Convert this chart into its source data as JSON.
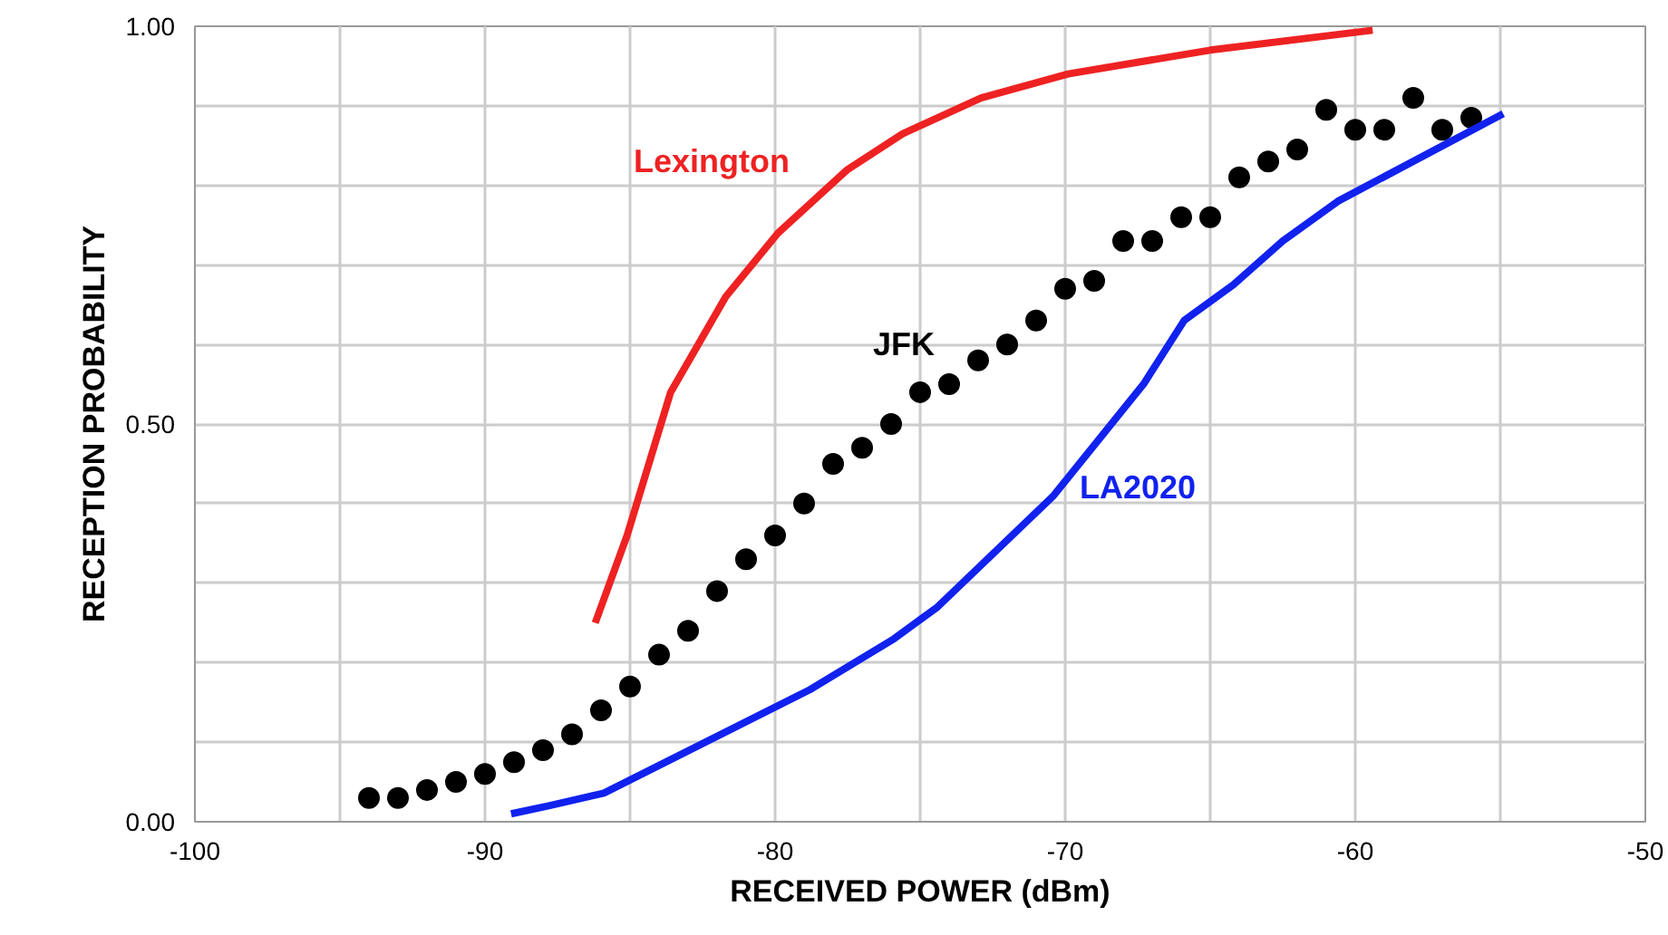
{
  "chart_data": {
    "type": "line",
    "xlabel": "RECEIVED POWER (dBm)",
    "ylabel": "RECEPTION PROBABILITY",
    "xlim": [
      -100,
      -50
    ],
    "ylim": [
      0,
      1
    ],
    "xticks": [
      -100,
      {
        "value": -95,
        "label": null
      },
      -90,
      {
        "value": -85,
        "label": null
      },
      -80,
      {
        "value": -75,
        "label": null
      },
      -70,
      {
        "value": -65,
        "label": null
      },
      -60,
      {
        "value": -55,
        "label": null
      },
      -50
    ],
    "yticks": [
      {
        "value": 0,
        "label": "0.00"
      },
      {
        "value": 0.1,
        "label": null
      },
      {
        "value": 0.2,
        "label": null
      },
      {
        "value": 0.3,
        "label": null
      },
      {
        "value": 0.4,
        "label": null
      },
      {
        "value": 0.5,
        "label": "0.50"
      },
      {
        "value": 0.6,
        "label": null
      },
      {
        "value": 0.7,
        "label": null
      },
      {
        "value": 0.8,
        "label": null
      },
      {
        "value": 0.9,
        "label": null
      },
      {
        "value": 1,
        "label": "1.00"
      }
    ],
    "grid": true,
    "series": [
      {
        "name": "Lexington",
        "color": "#ee2222",
        "x": [
          -86.2,
          -85.1,
          -83.6,
          -81.7,
          -79.9,
          -77.5,
          -75.6,
          -72.9,
          -69.9,
          -65,
          -59.4
        ],
        "values": [
          0.25,
          0.36,
          0.54,
          0.66,
          0.74,
          0.82,
          0.865,
          0.91,
          0.94,
          0.97,
          0.995
        ]
      },
      {
        "name": "JFK",
        "color": "#000000",
        "type": "scatter",
        "marker": "circle",
        "x": [
          -94,
          -93,
          -92,
          -91,
          -90,
          -89,
          -88,
          -87,
          -86,
          -85,
          -84,
          -83,
          -82,
          -81,
          -80,
          -79,
          -78,
          -77,
          -76,
          -75,
          -74,
          -73,
          -72,
          -71,
          -70,
          -69,
          -68,
          -67,
          -66,
          -65,
          -64,
          -63,
          -62,
          -61,
          -60,
          -59,
          -58,
          -57,
          -56
        ],
        "values": [
          0.03,
          0.03,
          0.04,
          0.05,
          0.06,
          0.075,
          0.09,
          0.11,
          0.14,
          0.17,
          0.21,
          0.24,
          0.29,
          0.33,
          0.36,
          0.4,
          0.45,
          0.47,
          0.5,
          0.54,
          0.55,
          0.58,
          0.6,
          0.63,
          0.67,
          0.68,
          0.73,
          0.73,
          0.76,
          0.76,
          0.81,
          0.83,
          0.845,
          0.895,
          0.87,
          0.87,
          0.91,
          0.87,
          0.885
        ]
      },
      {
        "name": "LA2020",
        "color": "#1122ee",
        "x": [
          -89.1,
          -87.8,
          -85.9,
          -78.8,
          -75.9,
          -74.4,
          -70.4,
          -67.3,
          -65.9,
          -64.2,
          -62.5,
          -60.6,
          -54.9
        ],
        "values": [
          0.01,
          0.02,
          0.036,
          0.166,
          0.23,
          0.27,
          0.41,
          0.55,
          0.63,
          0.675,
          0.73,
          0.78,
          0.89
        ]
      }
    ]
  }
}
